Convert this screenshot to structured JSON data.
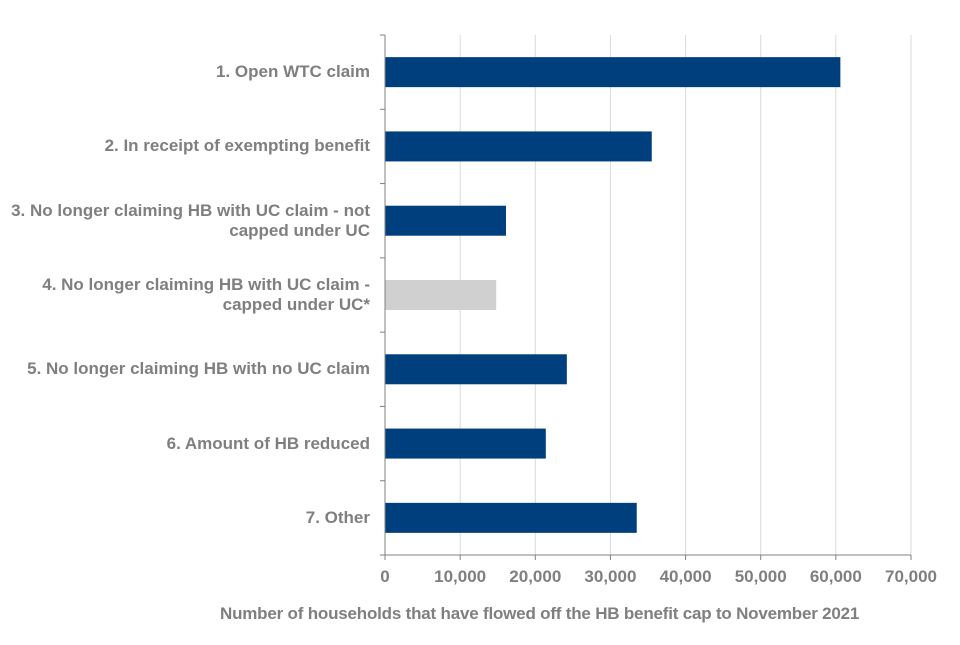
{
  "chart_data": {
    "type": "bar",
    "orientation": "horizontal",
    "title": "",
    "xlabel": "Number of households that have flowed off the HB benefit cap to November 2021",
    "ylabel": "",
    "xlim": [
      0,
      70000
    ],
    "xticks": [
      0,
      10000,
      20000,
      30000,
      40000,
      50000,
      60000,
      70000
    ],
    "xtick_labels": [
      "0",
      "10,000",
      "20,000",
      "30,000",
      "40,000",
      "50,000",
      "60,000",
      "70,000"
    ],
    "grid": "vertical gridlines",
    "categories": [
      "1. Open WTC claim",
      "2. In receipt of exempting benefit",
      "3. No longer claiming HB with UC claim - not capped under UC",
      "4. No longer claiming HB with UC claim - capped under UC*",
      "5. No longer claiming HB with no UC claim",
      "6. Amount of HB reduced",
      "7. Other"
    ],
    "values": [
      60600,
      35500,
      16100,
      14800,
      24200,
      21400,
      33500
    ],
    "bar_colors": [
      "#003f7d",
      "#003f7d",
      "#003f7d",
      "#d0d0d0",
      "#003f7d",
      "#003f7d",
      "#003f7d"
    ]
  }
}
